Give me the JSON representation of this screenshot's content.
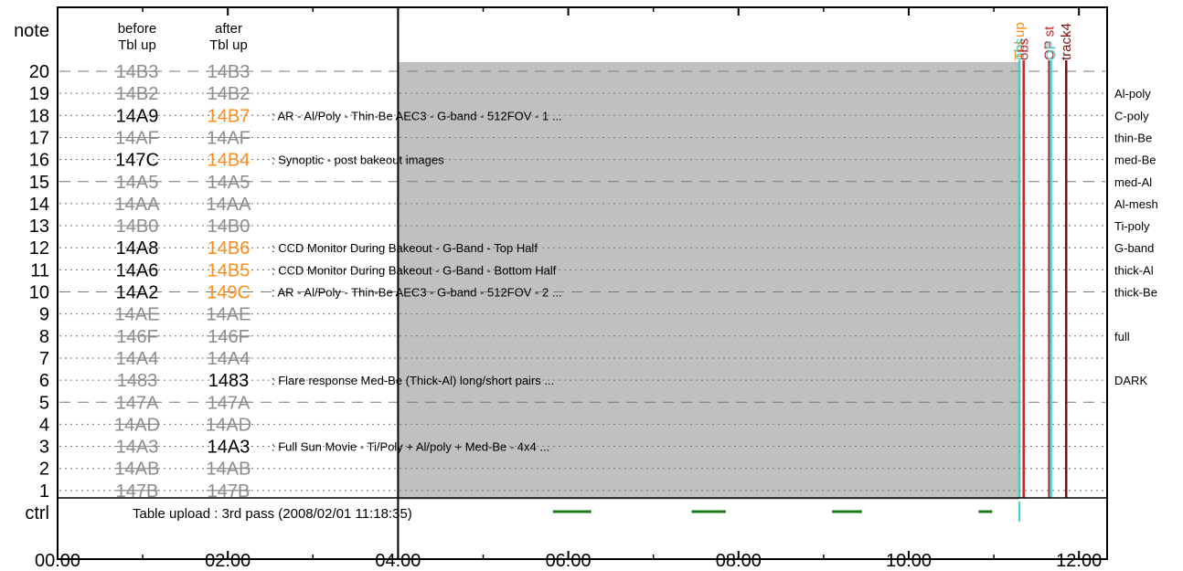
{
  "chart_data": {
    "type": "timeline",
    "ylabel": "note",
    "ctrl_label": "ctrl",
    "x_ticks": [
      "00:00",
      "02:00",
      "04:00",
      "06:00",
      "08:00",
      "10:00",
      "12:00"
    ],
    "xlim_hours": [
      0,
      12.3
    ],
    "col_before_header": [
      "before",
      "Tbl up"
    ],
    "col_after_header": [
      "after",
      "Tbl up"
    ],
    "rows": [
      {
        "note": "20",
        "before": "14B3",
        "after": "14B3",
        "before_status": "struck",
        "after_status": "struck",
        "desc": "",
        "filter": "",
        "line": "dashed"
      },
      {
        "note": "19",
        "before": "14B2",
        "after": "14B2",
        "before_status": "struck",
        "after_status": "struck",
        "desc": "",
        "filter": "Al-poly",
        "line": "dotted"
      },
      {
        "note": "18",
        "before": "14A9",
        "after": "14B7",
        "before_status": "active",
        "after_status": "changed",
        "desc": ": AR - Al/Poly - Thin-Be AEC3 - G-band - 512FOV - 1 ...",
        "filter": "C-poly",
        "line": "dotted"
      },
      {
        "note": "17",
        "before": "14AF",
        "after": "14AF",
        "before_status": "struck",
        "after_status": "struck",
        "desc": "",
        "filter": "thin-Be",
        "line": "dotted"
      },
      {
        "note": "16",
        "before": "147C",
        "after": "14B4",
        "before_status": "active",
        "after_status": "changed",
        "desc": ": Synoptic - post bakeout images",
        "filter": "med-Be",
        "line": "dotted"
      },
      {
        "note": "15",
        "before": "14A5",
        "after": "14A5",
        "before_status": "struck",
        "after_status": "struck",
        "desc": "",
        "filter": "med-Al",
        "line": "dashed"
      },
      {
        "note": "14",
        "before": "14AA",
        "after": "14AA",
        "before_status": "struck",
        "after_status": "struck",
        "desc": "",
        "filter": "Al-mesh",
        "line": "dotted"
      },
      {
        "note": "13",
        "before": "14B0",
        "after": "14B0",
        "before_status": "struck",
        "after_status": "struck",
        "desc": "",
        "filter": "Ti-poly",
        "line": "dotted"
      },
      {
        "note": "12",
        "before": "14A8",
        "after": "14B6",
        "before_status": "active",
        "after_status": "changed",
        "desc": ": CCD Monitor During Bakeout - G-Band - Top Half",
        "filter": "G-band",
        "line": "dotted"
      },
      {
        "note": "11",
        "before": "14A6",
        "after": "14B5",
        "before_status": "active",
        "after_status": "changed",
        "desc": ": CCD Monitor During Bakeout - G-Band - Bottom Half",
        "filter": "thick-Al",
        "line": "dotted"
      },
      {
        "note": "10",
        "before": "14A2",
        "after": "149C",
        "before_status": "active",
        "after_status": "changed",
        "desc": ": AR - Al/Poly - Thin-Be AEC3 - G-band - 512FOV - 2 ...",
        "filter": "thick-Be",
        "line": "dashed"
      },
      {
        "note": "9",
        "before": "14AE",
        "after": "14AE",
        "before_status": "struck",
        "after_status": "struck",
        "desc": "",
        "filter": "",
        "line": "dotted"
      },
      {
        "note": "8",
        "before": "146F",
        "after": "146F",
        "before_status": "struck",
        "after_status": "struck",
        "desc": "",
        "filter": "full",
        "line": "dotted"
      },
      {
        "note": "7",
        "before": "14A4",
        "after": "14A4",
        "before_status": "struck",
        "after_status": "struck",
        "desc": "",
        "filter": "",
        "line": "dotted"
      },
      {
        "note": "6",
        "before": "1483",
        "after": "1483",
        "before_status": "struck",
        "after_status": "active",
        "desc": ": Flare response Med-Be (Thick-Al) long/short pairs ...",
        "filter": "DARK",
        "line": "dotted"
      },
      {
        "note": "5",
        "before": "147A",
        "after": "147A",
        "before_status": "struck",
        "after_status": "struck",
        "desc": "",
        "filter": "",
        "line": "dashed"
      },
      {
        "note": "4",
        "before": "14AD",
        "after": "14AD",
        "before_status": "struck",
        "after_status": "struck",
        "desc": "",
        "filter": "",
        "line": "dotted"
      },
      {
        "note": "3",
        "before": "14A3",
        "after": "14A3",
        "before_status": "struck",
        "after_status": "active",
        "desc": ": Full Sun Movie - Ti/Poly + Al/poly + Med-Be - 4x4 ...",
        "filter": "",
        "line": "dotted"
      },
      {
        "note": "2",
        "before": "14AB",
        "after": "14AB",
        "before_status": "struck",
        "after_status": "struck",
        "desc": "",
        "filter": "",
        "line": "dotted"
      },
      {
        "note": "1",
        "before": "147B",
        "after": "147B",
        "before_status": "struck",
        "after_status": "struck",
        "desc": "",
        "filter": "",
        "line": "dotted"
      }
    ],
    "upload_time_hours": 4.0,
    "shaded_region_hours": [
      4.0,
      11.3
    ],
    "ctrl_text": "Table upload : 3rd pass (2008/02/01 11:18:35)",
    "ctrl_segments_hours": [
      [
        5.82,
        6.27
      ],
      [
        7.45,
        7.85
      ],
      [
        9.1,
        9.45
      ],
      [
        10.82,
        10.98
      ]
    ],
    "ctrl_marker_hours": 11.3,
    "events": [
      {
        "label": "Tbl up",
        "color": "#ff8c1a",
        "hour": 11.3
      },
      {
        "label": "obs",
        "color": "#40d0d0",
        "hour": 11.3
      },
      {
        "label": "obs",
        "color": "#cc2222",
        "hour": 11.35
      },
      {
        "label": "OP st",
        "color": "#cc2222",
        "hour": 11.65
      },
      {
        "label": "OP",
        "color": "#40d0d0",
        "hour": 11.67
      },
      {
        "label": "track4",
        "color": "#7a1010",
        "hour": 11.85
      }
    ],
    "colors": {
      "active": "#000000",
      "struck": "#8c8c8c",
      "changed": "#ff8c1a",
      "shade": "#c0c0c0",
      "ctrl_segment": "#1a7a1a",
      "ctrl_marker": "#40d0d0"
    }
  }
}
